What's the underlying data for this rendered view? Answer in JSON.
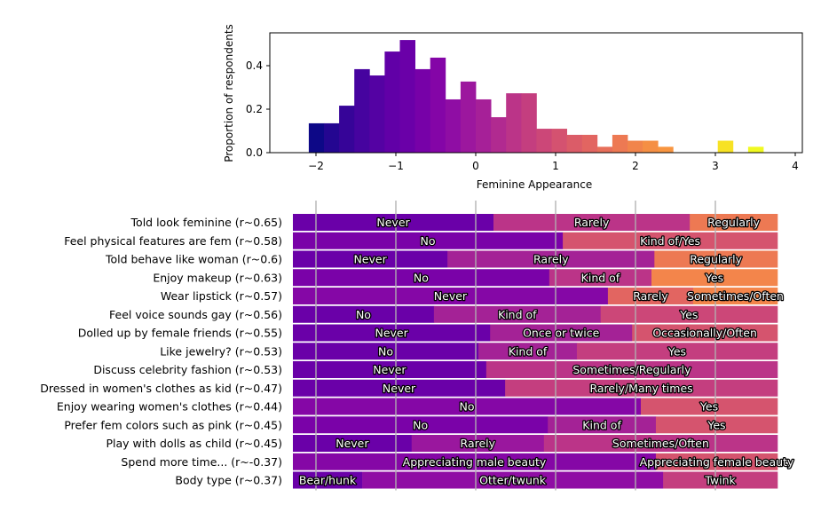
{
  "chart_data": [
    {
      "type": "bar",
      "subtype": "histogram",
      "title": "",
      "xlabel": "Feminine Appearance",
      "ylabel": "Proportion of respondents",
      "xlim": [
        -2.55,
        4.05
      ],
      "ylim": [
        0,
        0.55
      ],
      "xticks": [
        -2,
        -1,
        0,
        1,
        2,
        3,
        4
      ],
      "xtick_labels": [
        "−2",
        "−1",
        "0",
        "1",
        "2",
        "3",
        "4"
      ],
      "yticks": [
        0.0,
        0.2,
        0.4
      ],
      "ytick_labels": [
        "0.0",
        "0.2",
        "0.4"
      ],
      "grid": false,
      "colormap": "plasma",
      "bin_width": 0.19,
      "bins": [
        {
          "x0": -2.09,
          "value": 0.135,
          "color": "#0d0887"
        },
        {
          "x0": -1.9,
          "value": 0.135,
          "color": "#240691"
        },
        {
          "x0": -1.71,
          "value": 0.216,
          "color": "#360498"
        },
        {
          "x0": -1.52,
          "value": 0.384,
          "color": "#46039f"
        },
        {
          "x0": -1.33,
          "value": 0.355,
          "color": "#5402a3"
        },
        {
          "x0": -1.14,
          "value": 0.465,
          "color": "#6100a7"
        },
        {
          "x0": -0.95,
          "value": 0.518,
          "color": "#6a00a8"
        },
        {
          "x0": -0.76,
          "value": 0.384,
          "color": "#7701a8"
        },
        {
          "x0": -0.57,
          "value": 0.437,
          "color": "#8405a7"
        },
        {
          "x0": -0.38,
          "value": 0.245,
          "color": "#8f0da4"
        },
        {
          "x0": -0.19,
          "value": 0.327,
          "color": "#9c179e"
        },
        {
          "x0": 0.0,
          "value": 0.245,
          "color": "#a62098"
        },
        {
          "x0": 0.19,
          "value": 0.163,
          "color": "#b12a90"
        },
        {
          "x0": 0.38,
          "value": 0.273,
          "color": "#bb3488"
        },
        {
          "x0": 0.57,
          "value": 0.273,
          "color": "#c43e7f"
        },
        {
          "x0": 0.76,
          "value": 0.11,
          "color": "#cc4778"
        },
        {
          "x0": 0.95,
          "value": 0.11,
          "color": "#d45270"
        },
        {
          "x0": 1.14,
          "value": 0.082,
          "color": "#db5c68"
        },
        {
          "x0": 1.33,
          "value": 0.082,
          "color": "#e26561"
        },
        {
          "x0": 1.52,
          "value": 0.027,
          "color": "#e76f5a"
        },
        {
          "x0": 1.71,
          "value": 0.082,
          "color": "#ed7953"
        },
        {
          "x0": 1.9,
          "value": 0.055,
          "color": "#f1844b"
        },
        {
          "x0": 2.09,
          "value": 0.055,
          "color": "#f58f44"
        },
        {
          "x0": 2.28,
          "value": 0.027,
          "color": "#f89540"
        },
        {
          "x0": 3.03,
          "value": 0.055,
          "color": "#f7e225"
        },
        {
          "x0": 3.41,
          "value": 0.027,
          "color": "#f0f921"
        }
      ]
    },
    {
      "type": "bar",
      "subtype": "stacked-horizontal-100",
      "title": "",
      "xlabel": "",
      "ylabel": "",
      "grid": true,
      "grid_positions_shared_with_histogram_x": [
        -2,
        -1,
        0,
        1,
        2,
        3
      ],
      "rows": [
        {
          "label": "Told look feminine (r~0.65)",
          "segments": [
            {
              "label": "Never",
              "share": 0.414,
              "color": "#6a00a8"
            },
            {
              "label": "Rarely",
              "share": 0.405,
              "color": "#bb3488"
            },
            {
              "label": "Regularly",
              "share": 0.181,
              "color": "#ed7953"
            }
          ]
        },
        {
          "label": "Feel physical features are fem (r~0.58)",
          "segments": [
            {
              "label": "No",
              "share": 0.557,
              "color": "#7a02a8"
            },
            {
              "label": "Kind of/Yes",
              "share": 0.443,
              "color": "#d5546e"
            }
          ]
        },
        {
          "label": "Told behave like woman (r~0.6)",
          "segments": [
            {
              "label": "Never",
              "share": 0.319,
              "color": "#6a00a8"
            },
            {
              "label": "Rarely",
              "share": 0.427,
              "color": "#a42296"
            },
            {
              "label": "Regularly",
              "share": 0.254,
              "color": "#ed7953"
            }
          ]
        },
        {
          "label": "Enjoy makeup (r~0.63)",
          "segments": [
            {
              "label": "No",
              "share": 0.529,
              "color": "#7a02a8"
            },
            {
              "label": "Kind of",
              "share": 0.211,
              "color": "#bb3488"
            },
            {
              "label": "Yes",
              "share": 0.26,
              "color": "#f3854b"
            }
          ]
        },
        {
          "label": "Wear lipstick (r~0.57)",
          "segments": [
            {
              "label": "Never",
              "share": 0.65,
              "color": "#8507a6"
            },
            {
              "label": "Rarely",
              "share": 0.176,
              "color": "#e26561"
            },
            {
              "label": "Sometimes/Often",
              "share": 0.174,
              "color": "#f3854b"
            }
          ]
        },
        {
          "label": "Feel voice sounds gay (r~0.56)",
          "segments": [
            {
              "label": "No",
              "share": 0.291,
              "color": "#6a00a8"
            },
            {
              "label": "Kind of",
              "share": 0.344,
              "color": "#a42296"
            },
            {
              "label": "Yes",
              "share": 0.365,
              "color": "#cc4778"
            }
          ]
        },
        {
          "label": "Dolled up by female friends (r~0.55)",
          "segments": [
            {
              "label": "Never",
              "share": 0.407,
              "color": "#6a00a8"
            },
            {
              "label": "Once or twice",
              "share": 0.293,
              "color": "#a42296"
            },
            {
              "label": "Occasionally/Often",
              "share": 0.3,
              "color": "#d5546e"
            }
          ]
        },
        {
          "label": "Like jewelry? (r~0.53)",
          "segments": [
            {
              "label": "No",
              "share": 0.383,
              "color": "#6a00a8"
            },
            {
              "label": "Kind of",
              "share": 0.203,
              "color": "#a42296"
            },
            {
              "label": "Yes",
              "share": 0.414,
              "color": "#c43e7f"
            }
          ]
        },
        {
          "label": "Discuss celebrity fashion (r~0.53)",
          "segments": [
            {
              "label": "Never",
              "share": 0.399,
              "color": "#6a00a8"
            },
            {
              "label": "Sometimes/Regularly",
              "share": 0.601,
              "color": "#bb3488"
            }
          ]
        },
        {
          "label": "Dressed in women's clothes as kid (r~0.47)",
          "segments": [
            {
              "label": "Never",
              "share": 0.438,
              "color": "#6a00a8"
            },
            {
              "label": "Rarely/Many times",
              "share": 0.562,
              "color": "#c43e7f"
            }
          ]
        },
        {
          "label": "Enjoy wearing women's clothes (r~0.44)",
          "segments": [
            {
              "label": "No",
              "share": 0.718,
              "color": "#8507a6"
            },
            {
              "label": "Yes",
              "share": 0.282,
              "color": "#d5546e"
            }
          ]
        },
        {
          "label": "Prefer fem colors such as pink (r~0.45)",
          "segments": [
            {
              "label": "No",
              "share": 0.526,
              "color": "#7a02a8"
            },
            {
              "label": "Kind of",
              "share": 0.223,
              "color": "#a42296"
            },
            {
              "label": "Yes",
              "share": 0.251,
              "color": "#d5546e"
            }
          ]
        },
        {
          "label": "Play with dolls as child (r~0.45)",
          "segments": [
            {
              "label": "Never",
              "share": 0.245,
              "color": "#6a00a8"
            },
            {
              "label": "Rarely",
              "share": 0.273,
              "color": "#9a179e"
            },
            {
              "label": "Sometimes/Often",
              "share": 0.482,
              "color": "#bb3488"
            }
          ]
        },
        {
          "label": "Spend more time... (r~-0.37)",
          "segments": [
            {
              "label": "Appreciating male beauty",
              "share": 0.749,
              "color": "#8507a6"
            },
            {
              "label": "Appreciating female beauty",
              "share": 0.251,
              "color": "#d5546e"
            }
          ]
        },
        {
          "label": "Body type (r~0.37)",
          "segments": [
            {
              "label": "Bear/hunk",
              "share": 0.143,
              "color": "#6a00a8"
            },
            {
              "label": "Otter/twunk",
              "share": 0.621,
              "color": "#8f0da4"
            },
            {
              "label": "Twink",
              "share": 0.236,
              "color": "#c43e7f"
            }
          ]
        }
      ]
    }
  ]
}
